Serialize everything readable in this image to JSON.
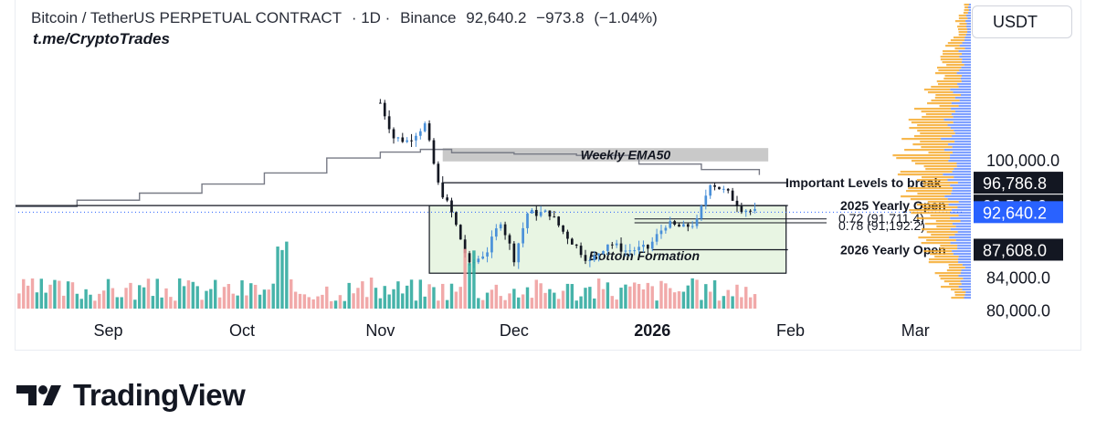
{
  "header": {
    "symbol": "Bitcoin / TetherUS PERPETUAL CONTRACT",
    "interval": "· 1D ·",
    "exchange": "Binance",
    "last_price": "92,640.2",
    "change": "−973.8",
    "change_pct": "(−1.04%)",
    "handle": "t.me/CryptoTrades"
  },
  "unit_button": "USDT",
  "brand": {
    "name": "TradingView"
  },
  "colors": {
    "up": "#4a90d9",
    "down": "#131722",
    "vol_up": "#26a69a",
    "vol_down": "#ef9a9a",
    "box_fill": "#e8f5e3",
    "profile_orange": "#f5a623",
    "profile_blue": "#2962ff",
    "ema": "#787b86",
    "dark_label": "#131722",
    "current_label": "#2962ff"
  },
  "chart_data": {
    "type": "candlestick",
    "title": "Bitcoin / TetherUS PERPETUAL CONTRACT · 1D · Binance",
    "xlabel": "",
    "ylabel": "",
    "y_scale": "log",
    "ylim": [
      79500,
      127000
    ],
    "x_ticks": [
      {
        "label": "Sep",
        "date": "2025-09-01"
      },
      {
        "label": "Oct",
        "date": "2025-10-01"
      },
      {
        "label": "Nov",
        "date": "2025-11-01"
      },
      {
        "label": "Dec",
        "date": "2025-12-01"
      },
      {
        "label": "2026",
        "date": "2026-01-01",
        "bold": true
      },
      {
        "label": "Feb",
        "date": "2026-02-01"
      },
      {
        "label": "Mar",
        "date": "2026-03-01"
      }
    ],
    "x_range": [
      "2025-08-11",
      "2026-03-12"
    ],
    "y_ticks": [
      "100,000.0",
      "84,000.0",
      "80,000.0"
    ],
    "y_tick_values": [
      100000,
      84000,
      80000
    ],
    "price_labels": [
      {
        "text": "96,786.8",
        "value": 96786.8,
        "style": "dark"
      },
      {
        "text": "93,549.0",
        "value": 93549.0,
        "style": "dark"
      },
      {
        "text": "92,640.2",
        "value": 92640.2,
        "style": "current"
      },
      {
        "text": "87,608.0",
        "value": 87608.0,
        "style": "dark"
      }
    ],
    "levels": [
      {
        "label": "Important Levels to break",
        "value": 96786.8,
        "from": "2025-11-15",
        "to": "2026-01-31"
      },
      {
        "label": "2025 Yearly Open",
        "value": 93549.0,
        "from": "2025-08-11",
        "to": "2026-01-31"
      },
      {
        "label": "2026 Yearly Open",
        "value": 87608.0,
        "from": "2026-01-01",
        "to": "2026-01-31"
      }
    ],
    "fib_levels": [
      {
        "label": "0.72 (91,711.4)",
        "value": 91711.4
      },
      {
        "label": "0.78 (91,192.2)",
        "value": 91192.2
      }
    ],
    "zones": [
      {
        "label": "Bottom Formation",
        "from": "2025-11-12",
        "to": "2026-01-31",
        "low": 84600,
        "high": 93549
      }
    ],
    "annotations": [
      {
        "text": "Weekly EMA50",
        "date": "2025-12-26",
        "value": 100500
      }
    ],
    "resistance_band": {
      "from": "2025-11-15",
      "to": "2026-01-27",
      "low": 99900,
      "high": 101900
    },
    "ema50_weekly": [
      {
        "date": "2025-08-11",
        "value": 93400
      },
      {
        "date": "2025-08-25",
        "value": 94300
      },
      {
        "date": "2025-09-08",
        "value": 95300
      },
      {
        "date": "2025-09-22",
        "value": 96600
      },
      {
        "date": "2025-10-06",
        "value": 98200
      },
      {
        "date": "2025-10-20",
        "value": 100400
      },
      {
        "date": "2025-11-01",
        "value": 101300
      },
      {
        "date": "2025-11-10",
        "value": 101700
      },
      {
        "date": "2025-11-17",
        "value": 101200
      },
      {
        "date": "2025-12-01",
        "value": 101000
      },
      {
        "date": "2025-12-15",
        "value": 100800
      },
      {
        "date": "2025-12-29",
        "value": 99500
      },
      {
        "date": "2026-01-12",
        "value": 98700
      },
      {
        "date": "2026-01-25",
        "value": 97900
      }
    ],
    "candles_visible_from": "2025-11-01",
    "candles_to": "2026-01-24",
    "volume_bars": "rendered for every day in the visible window, alternating up/down colors",
    "volume_profile": "horizontal histogram on the right side, orange and blue, peaking near 91,000–93,000"
  }
}
